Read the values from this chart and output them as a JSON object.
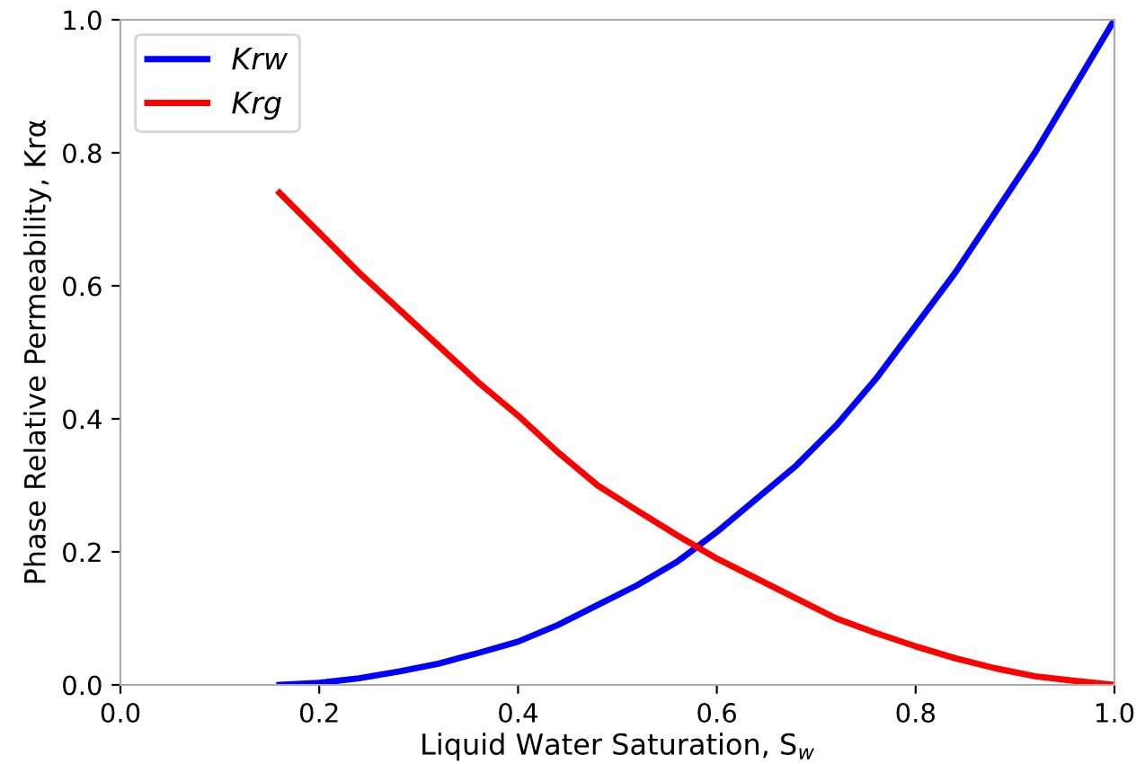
{
  "chart_data": {
    "type": "line",
    "xlabel": "Liquid Water Saturation, S$_{w}$",
    "ylabel": "Phase Relative Permeability, Krα",
    "xlim": [
      0.0,
      1.0
    ],
    "ylim": [
      0.0,
      1.0
    ],
    "xticks": [
      {
        "value": 0,
        "label": "0.0"
      },
      0.2,
      0.4,
      0.6,
      0.8,
      {
        "value": 1,
        "label": "1.0"
      }
    ],
    "yticks": [
      {
        "value": 0,
        "label": "0.0"
      },
      0.2,
      0.4,
      0.6,
      0.8,
      {
        "value": 1,
        "label": "1.0"
      }
    ],
    "grid": false,
    "legend": "top left",
    "marker": "none",
    "line_style": "solid",
    "series": [
      {
        "name": "Krw",
        "color": "#0000ff",
        "x": [
          0.16,
          0.2,
          0.24,
          0.28,
          0.32,
          0.36,
          0.4,
          0.44,
          0.48,
          0.52,
          0.56,
          0.6,
          0.64,
          0.68,
          0.72,
          0.76,
          0.8,
          0.84,
          0.88,
          0.92,
          0.96,
          1.0
        ],
        "values": [
          0.0,
          0.003,
          0.01,
          0.02,
          0.032,
          0.048,
          0.065,
          0.09,
          0.12,
          0.15,
          0.185,
          0.23,
          0.28,
          0.33,
          0.39,
          0.46,
          0.54,
          0.62,
          0.71,
          0.8,
          0.9,
          1.0
        ]
      },
      {
        "name": "Krg",
        "color": "#ff0000",
        "x": [
          0.16,
          0.2,
          0.24,
          0.28,
          0.32,
          0.36,
          0.4,
          0.44,
          0.48,
          0.52,
          0.56,
          0.6,
          0.64,
          0.68,
          0.72,
          0.76,
          0.8,
          0.84,
          0.88,
          0.92,
          0.96,
          1.0
        ],
        "values": [
          0.74,
          0.68,
          0.62,
          0.565,
          0.51,
          0.455,
          0.405,
          0.35,
          0.3,
          0.262,
          0.225,
          0.19,
          0.16,
          0.13,
          0.1,
          0.078,
          0.058,
          0.04,
          0.025,
          0.013,
          0.006,
          0.0
        ]
      }
    ]
  }
}
